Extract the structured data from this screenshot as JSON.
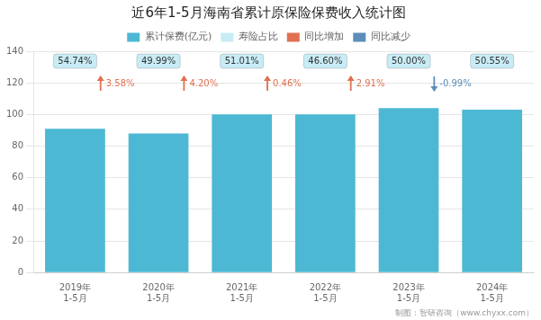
{
  "chart_data": {
    "type": "bar",
    "title": "近6年1-5月海南省累计原保险保费收入统计图",
    "categories": [
      "2019年\n1-5月",
      "2020年\n1-5月",
      "2021年\n1-5月",
      "2022年\n1-5月",
      "2023年\n1-5月",
      "2024年\n1-5月"
    ],
    "series": [
      {
        "name": "累计保费(亿元)",
        "color": "#4db8d4",
        "values": [
          91,
          88,
          100,
          100,
          104,
          103
        ]
      }
    ],
    "annotations": [
      {
        "name": "寿险占比",
        "color": "#c8ecf5",
        "marker": "box",
        "labels": [
          "54.74%",
          "49.99%",
          "51.01%",
          "46.60%",
          "50.00%",
          "50.55%"
        ]
      },
      {
        "name": "同比增加",
        "color": "#e07050",
        "marker": "arrow_up",
        "labels": [
          "3.58%",
          "4.20%",
          "0.46%",
          "2.91%",
          null
        ]
      },
      {
        "name": "同比减少",
        "color": "#5b8db8",
        "marker": "arrow_down",
        "labels": [
          null,
          null,
          null,
          null,
          "-0.99%"
        ]
      }
    ],
    "caption": "制图：智研咨询（www.chyxx.com）",
    "ylim": [
      0,
      140
    ],
    "yticks": [
      0,
      20,
      40,
      60,
      80,
      100,
      120,
      140
    ],
    "grid": true,
    "legend": "top"
  }
}
